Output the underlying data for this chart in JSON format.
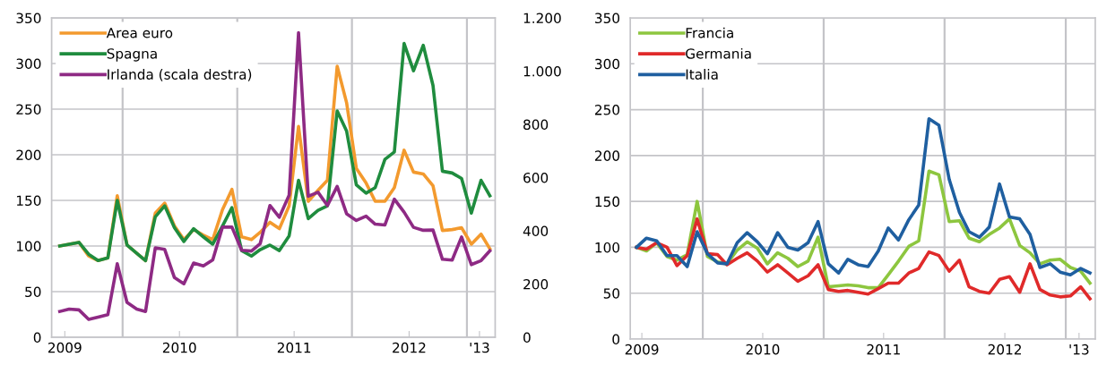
{
  "chart_data": [
    {
      "type": "line",
      "x": [
        "2009-06-15",
        "2009-07-15",
        "2009-08-15",
        "2009-09-15",
        "2009-10-15",
        "2009-11-15",
        "2009-12-15",
        "2010-01-15",
        "2010-02-15",
        "2010-03-15",
        "2010-04-15",
        "2010-05-15",
        "2010-06-15",
        "2010-07-15",
        "2010-08-15",
        "2010-09-15",
        "2010-10-15",
        "2010-11-15",
        "2010-12-15",
        "2011-01-15",
        "2011-02-15",
        "2011-03-15",
        "2011-04-15",
        "2011-05-15",
        "2011-06-15",
        "2011-07-15",
        "2011-08-15",
        "2011-09-15",
        "2011-10-15",
        "2011-11-15",
        "2011-12-15",
        "2012-01-15",
        "2012-02-15",
        "2012-03-15",
        "2012-04-15",
        "2012-05-15",
        "2012-06-15",
        "2012-07-15",
        "2012-08-15",
        "2012-09-15",
        "2012-10-15",
        "2012-11-15",
        "2012-12-15",
        "2013-01-15",
        "2013-02-15",
        "2013-03-15"
      ],
      "series": [
        {
          "name": "Area euro",
          "color": "#f39a2e",
          "values": [
            100,
            102,
            104,
            89,
            84,
            87,
            155,
            101,
            92,
            84,
            136,
            147,
            122,
            107,
            118,
            112,
            107,
            140,
            162,
            110,
            107,
            115,
            126,
            119,
            144,
            231,
            149,
            161,
            172,
            297,
            257,
            185,
            169,
            149,
            149,
            164,
            205,
            181,
            179,
            166,
            117,
            118,
            120,
            102,
            113,
            97
          ]
        },
        {
          "name": "Spagna",
          "color": "#1f8c3e",
          "values": [
            100,
            102,
            104,
            91,
            84,
            87,
            150,
            101,
            92,
            84,
            132,
            144,
            120,
            105,
            119,
            110,
            102,
            122,
            142,
            95,
            89,
            96,
            101,
            95,
            111,
            172,
            130,
            139,
            144,
            248,
            226,
            167,
            158,
            164,
            195,
            203,
            322,
            292,
            320,
            276,
            182,
            180,
            174,
            136,
            172,
            155
          ]
        },
        {
          "name": "Irlanda (scala destra)",
          "color": "#8e2a84",
          "axis": "y2",
          "values": [
            97,
            106,
            103,
            67,
            76,
            85,
            276,
            131,
            106,
            97,
            336,
            330,
            224,
            201,
            279,
            268,
            291,
            414,
            414,
            327,
            324,
            352,
            495,
            451,
            534,
            1144,
            530,
            545,
            495,
            567,
            464,
            439,
            455,
            425,
            422,
            519,
            470,
            413,
            402,
            403,
            293,
            290,
            377,
            273,
            288,
            325
          ]
        }
      ],
      "xlim": [
        "2009-05-20",
        "2013-04-01"
      ],
      "xticks": [
        {
          "value": "2009-07-01",
          "label": "2009"
        },
        {
          "value": "2010-07-01",
          "label": "2010"
        },
        {
          "value": "2011-07-01",
          "label": "2011"
        },
        {
          "value": "2012-07-01",
          "label": "2012"
        },
        {
          "value": "2013-02-10",
          "label": "'13"
        }
      ],
      "ylim": [
        0,
        350
      ],
      "yticks": [
        0,
        50,
        100,
        150,
        200,
        250,
        300,
        350
      ],
      "y2lim": [
        0,
        1200
      ],
      "y2ticks": [
        0,
        200,
        400,
        600,
        800,
        {
          "value": 1000,
          "label": "1.000"
        },
        {
          "value": 1200,
          "label": "1.200"
        }
      ],
      "ref_lines": [
        {
          "axis": "x",
          "value": "2010-01-01",
          "color": "#c4c4c8"
        },
        {
          "axis": "x",
          "value": "2011-01-01",
          "color": "#c4c4c8"
        },
        {
          "axis": "x",
          "value": "2012-01-01",
          "color": "#c4c4c8"
        },
        {
          "axis": "x",
          "value": "2013-01-01",
          "color": "#c4c4c8"
        }
      ],
      "grid": "y",
      "legend": "top left",
      "marker": "none",
      "line_style": "solid"
    },
    {
      "type": "line",
      "x": [
        "2009-06-15",
        "2009-07-15",
        "2009-08-15",
        "2009-09-15",
        "2009-10-15",
        "2009-11-15",
        "2009-12-15",
        "2010-01-15",
        "2010-02-15",
        "2010-03-15",
        "2010-04-15",
        "2010-05-15",
        "2010-06-15",
        "2010-07-15",
        "2010-08-15",
        "2010-09-15",
        "2010-10-15",
        "2010-11-15",
        "2010-12-15",
        "2011-01-15",
        "2011-02-15",
        "2011-03-15",
        "2011-04-15",
        "2011-05-15",
        "2011-06-15",
        "2011-07-15",
        "2011-08-15",
        "2011-09-15",
        "2011-10-15",
        "2011-11-15",
        "2011-12-15",
        "2012-01-15",
        "2012-02-15",
        "2012-03-15",
        "2012-04-15",
        "2012-05-15",
        "2012-06-15",
        "2012-07-15",
        "2012-08-15",
        "2012-09-15",
        "2012-10-15",
        "2012-11-15",
        "2012-12-15",
        "2013-01-15",
        "2013-02-15",
        "2013-03-15"
      ],
      "series": [
        {
          "name": "Francia",
          "color": "#8dc63f",
          "values": [
            100,
            96,
            105,
            90,
            86,
            92,
            150,
            90,
            84,
            82,
            97,
            106,
            99,
            82,
            94,
            88,
            79,
            85,
            111,
            57,
            58,
            59,
            58,
            56,
            56,
            70,
            85,
            101,
            107,
            183,
            179,
            128,
            129,
            110,
            106,
            114,
            121,
            131,
            102,
            94,
            82,
            86,
            87,
            78,
            74,
            61
          ]
        },
        {
          "name": "Germania",
          "color": "#e02a2a",
          "values": [
            100,
            98,
            105,
            100,
            80,
            91,
            131,
            93,
            92,
            81,
            88,
            94,
            85,
            73,
            81,
            72,
            63,
            69,
            81,
            54,
            52,
            53,
            51,
            49,
            55,
            61,
            61,
            72,
            77,
            95,
            91,
            74,
            86,
            57,
            52,
            50,
            65,
            68,
            51,
            82,
            54,
            48,
            46,
            47,
            57,
            44
          ]
        },
        {
          "name": "Italia",
          "color": "#1f5fa0",
          "values": [
            100,
            110,
            107,
            91,
            91,
            79,
            117,
            93,
            83,
            82,
            105,
            116,
            106,
            93,
            116,
            100,
            97,
            105,
            128,
            82,
            72,
            87,
            81,
            79,
            96,
            121,
            108,
            130,
            146,
            240,
            233,
            174,
            138,
            117,
            111,
            122,
            169,
            133,
            131,
            114,
            78,
            82,
            73,
            70,
            77,
            72
          ]
        }
      ],
      "xlim": [
        "2009-05-27",
        "2013-03-31"
      ],
      "xticks": [
        {
          "value": "2009-07-01",
          "label": "2009"
        },
        {
          "value": "2010-07-01",
          "label": "2010"
        },
        {
          "value": "2011-07-01",
          "label": "2011"
        },
        {
          "value": "2012-07-01",
          "label": "2012"
        },
        {
          "value": "2013-02-10",
          "label": "'13"
        }
      ],
      "ylim": [
        0,
        350
      ],
      "yticks": [
        0,
        50,
        100,
        150,
        200,
        250,
        300,
        350
      ],
      "ref_lines": [
        {
          "axis": "x",
          "value": "2010-01-01",
          "color": "#c4c4c8"
        },
        {
          "axis": "x",
          "value": "2011-01-01",
          "color": "#c4c4c8"
        },
        {
          "axis": "x",
          "value": "2012-01-01",
          "color": "#c4c4c8"
        },
        {
          "axis": "x",
          "value": "2013-01-01",
          "color": "#c4c4c8"
        }
      ],
      "grid": "y",
      "legend": "top left",
      "marker": "none",
      "line_style": "solid"
    }
  ]
}
